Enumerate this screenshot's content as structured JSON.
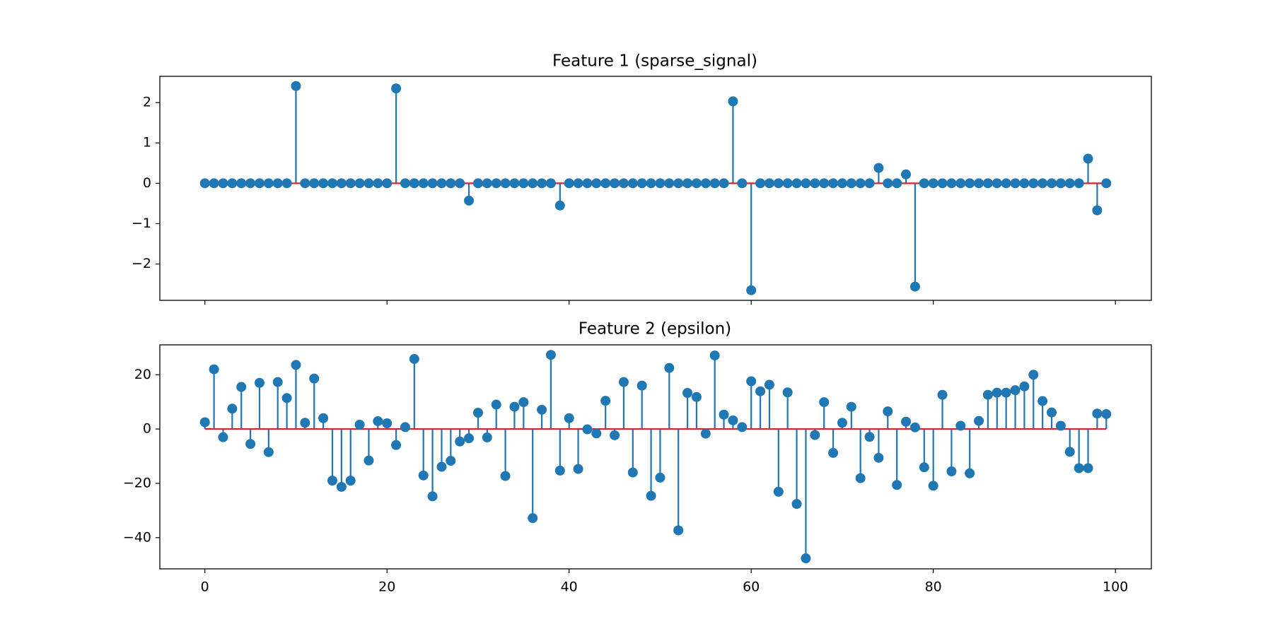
{
  "chart_data": [
    {
      "type": "stem",
      "title": "Feature 1 (sparse_signal)",
      "xlabel": "",
      "ylabel": "",
      "xlim": [
        -4.95,
        103.95
      ],
      "ylim": [
        -2.9,
        2.65
      ],
      "xticks": [
        0,
        20,
        40,
        60,
        80,
        100
      ],
      "xtick_labels_shown": false,
      "yticks": [
        -2,
        -1,
        0,
        1,
        2
      ],
      "ytick_labels": [
        "−2",
        "−1",
        "0",
        "1",
        "2"
      ],
      "grid": false,
      "legend": "none",
      "colors": {
        "stem": "#1f77b4",
        "baseline": "#d62728",
        "axes": "#000000"
      },
      "x": [
        0,
        1,
        2,
        3,
        4,
        5,
        6,
        7,
        8,
        9,
        10,
        11,
        12,
        13,
        14,
        15,
        16,
        17,
        18,
        19,
        20,
        21,
        22,
        23,
        24,
        25,
        26,
        27,
        28,
        29,
        30,
        31,
        32,
        33,
        34,
        35,
        36,
        37,
        38,
        39,
        40,
        41,
        42,
        43,
        44,
        45,
        46,
        47,
        48,
        49,
        50,
        51,
        52,
        53,
        54,
        55,
        56,
        57,
        58,
        59,
        60,
        61,
        62,
        63,
        64,
        65,
        66,
        67,
        68,
        69,
        70,
        71,
        72,
        73,
        74,
        75,
        76,
        77,
        78,
        79,
        80,
        81,
        82,
        83,
        84,
        85,
        86,
        87,
        88,
        89,
        90,
        91,
        92,
        93,
        94,
        95,
        96,
        97,
        98,
        99
      ],
      "values": [
        0,
        0,
        0,
        0,
        0,
        0,
        0,
        0,
        0,
        0,
        2.41,
        0,
        0,
        0,
        0,
        0,
        0,
        0,
        0,
        0,
        0,
        2.35,
        0,
        0,
        0,
        0,
        0,
        0,
        0,
        -0.43,
        0,
        0,
        0,
        0,
        0,
        0,
        0,
        0,
        0,
        -0.55,
        0,
        0,
        0,
        0,
        0,
        0,
        0,
        0,
        0,
        0,
        0,
        0,
        0,
        0,
        0,
        0,
        0,
        0,
        2.03,
        0,
        -2.65,
        0,
        0,
        0,
        0,
        0,
        0,
        0,
        0,
        0,
        0,
        0,
        0,
        0,
        0.38,
        0,
        0,
        0.22,
        -2.56,
        0,
        0,
        0,
        0,
        0,
        0,
        0,
        0,
        0,
        0,
        0,
        0,
        0,
        0,
        0,
        0,
        0,
        0,
        0.61,
        -0.67,
        0
      ]
    },
    {
      "type": "stem",
      "title": "Feature 2 (epsilon)",
      "xlabel": "",
      "ylabel": "",
      "xlim": [
        -4.95,
        103.95
      ],
      "ylim": [
        -51.5,
        31
      ],
      "xticks": [
        0,
        20,
        40,
        60,
        80,
        100
      ],
      "xtick_labels": [
        "0",
        "20",
        "40",
        "60",
        "80",
        "100"
      ],
      "yticks": [
        -40,
        -20,
        0,
        20
      ],
      "ytick_labels": [
        "−40",
        "−20",
        "0",
        "20"
      ],
      "grid": false,
      "legend": "none",
      "colors": {
        "stem": "#1f77b4",
        "baseline": "#d62728",
        "axes": "#000000"
      },
      "x": [
        0,
        1,
        2,
        3,
        4,
        5,
        6,
        7,
        8,
        9,
        10,
        11,
        12,
        13,
        14,
        15,
        16,
        17,
        18,
        19,
        20,
        21,
        22,
        23,
        24,
        25,
        26,
        27,
        28,
        29,
        30,
        31,
        32,
        33,
        34,
        35,
        36,
        37,
        38,
        39,
        40,
        41,
        42,
        43,
        44,
        45,
        46,
        47,
        48,
        49,
        50,
        51,
        52,
        53,
        54,
        55,
        56,
        57,
        58,
        59,
        60,
        61,
        62,
        63,
        64,
        65,
        66,
        67,
        68,
        69,
        70,
        71,
        72,
        73,
        74,
        75,
        76,
        77,
        78,
        79,
        80,
        81,
        82,
        83,
        84,
        85,
        86,
        87,
        88,
        89,
        90,
        91,
        92,
        93,
        94,
        95,
        96,
        97,
        98,
        99
      ],
      "values": [
        2.5,
        22,
        -3,
        7.5,
        15.5,
        -5.5,
        17,
        -8.5,
        17.3,
        11.4,
        23.6,
        2.3,
        18.6,
        4,
        -19,
        -21.3,
        -19,
        1.6,
        -11.6,
        2.9,
        2.1,
        -5.9,
        0.7,
        25.8,
        -17.1,
        -24.8,
        -13.9,
        -11.7,
        -4.6,
        -3.4,
        6,
        -3.1,
        9,
        -17.3,
        8.2,
        9.9,
        -32.8,
        7.1,
        27.3,
        -15.3,
        4,
        -14.7,
        -0.1,
        -1.6,
        10.4,
        -2.3,
        17.3,
        -16,
        16,
        -24.6,
        -17.9,
        22.5,
        -37.3,
        13.3,
        11.8,
        -1.7,
        27.1,
        5.3,
        3.2,
        0.7,
        17.6,
        13.9,
        16.3,
        -23.1,
        13.5,
        -27.6,
        -47.6,
        -2.2,
        9.9,
        -8.8,
        2.3,
        8.2,
        -18.1,
        -2.9,
        -10.6,
        6.5,
        -20.6,
        2.7,
        0.6,
        -14.1,
        -20.9,
        12.6,
        -15.6,
        1.2,
        -16.3,
        3,
        12.6,
        13.4,
        13.4,
        14.3,
        15.7,
        20,
        10.3,
        6.1,
        1.2,
        -8.4,
        -14.4,
        -14.4,
        5.7,
        5.5
      ]
    }
  ]
}
